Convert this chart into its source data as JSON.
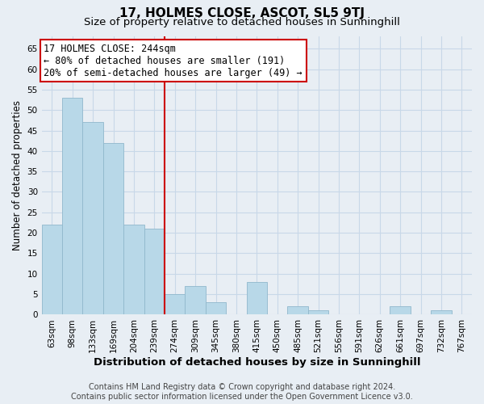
{
  "title": "17, HOLMES CLOSE, ASCOT, SL5 9TJ",
  "subtitle": "Size of property relative to detached houses in Sunninghill",
  "xlabel": "Distribution of detached houses by size in Sunninghill",
  "ylabel": "Number of detached properties",
  "footer_line1": "Contains HM Land Registry data © Crown copyright and database right 2024.",
  "footer_line2": "Contains public sector information licensed under the Open Government Licence v3.0.",
  "bins": [
    "63sqm",
    "98sqm",
    "133sqm",
    "169sqm",
    "204sqm",
    "239sqm",
    "274sqm",
    "309sqm",
    "345sqm",
    "380sqm",
    "415sqm",
    "450sqm",
    "485sqm",
    "521sqm",
    "556sqm",
    "591sqm",
    "626sqm",
    "661sqm",
    "697sqm",
    "732sqm",
    "767sqm"
  ],
  "values": [
    22,
    53,
    47,
    42,
    22,
    21,
    5,
    7,
    3,
    0,
    8,
    0,
    2,
    1,
    0,
    0,
    0,
    2,
    0,
    1,
    0
  ],
  "bar_color": "#b8d8e8",
  "bar_edge_color": "#90b8cc",
  "vline_color": "#cc0000",
  "vline_x": 5.5,
  "annotation_line1": "17 HOLMES CLOSE: 244sqm",
  "annotation_line2": "← 80% of detached houses are smaller (191)",
  "annotation_line3": "20% of semi-detached houses are larger (49) →",
  "ylim": [
    0,
    68
  ],
  "yticks": [
    0,
    5,
    10,
    15,
    20,
    25,
    30,
    35,
    40,
    45,
    50,
    55,
    60,
    65
  ],
  "grid_color": "#c8d8e8",
  "background_color": "#e8eef4",
  "title_fontsize": 11,
  "subtitle_fontsize": 9.5,
  "xlabel_fontsize": 9.5,
  "ylabel_fontsize": 8.5,
  "tick_fontsize": 7.5,
  "annotation_fontsize": 8.5,
  "footer_fontsize": 7.0
}
